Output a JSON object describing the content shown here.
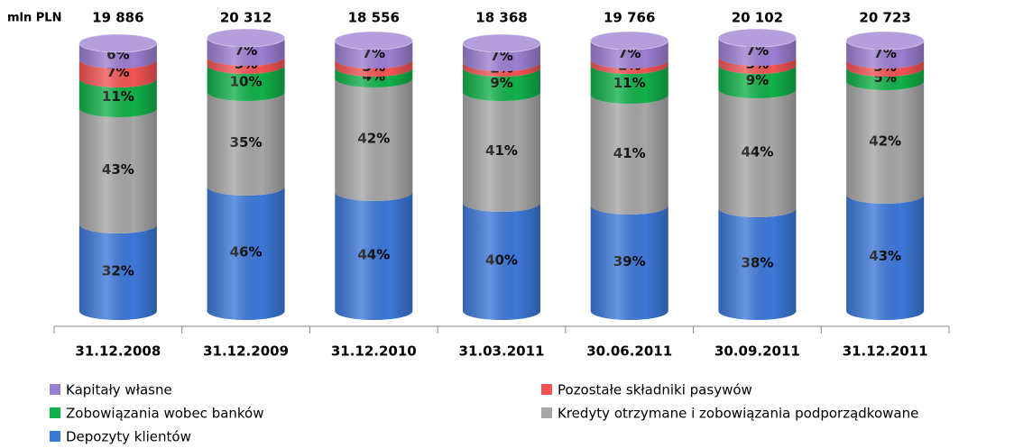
{
  "chart_data": {
    "type": "stacked_cylinder",
    "unit_label": "mln PLN",
    "categories": [
      "31.12.2008",
      "31.12.2009",
      "31.12.2010",
      "31.03.2011",
      "30.06.2011",
      "30.09.2011",
      "31.12.2011"
    ],
    "totals": {
      "values": [
        19886,
        20312,
        18556,
        18368,
        19766,
        20102,
        20723
      ],
      "value_labels": [
        "19 886",
        "20 312",
        "18 556",
        "18 368",
        "19 766",
        "20 102",
        "20 723"
      ]
    },
    "series": [
      {
        "name": "Depozyty klientów",
        "color": "#3d78d8",
        "values": [
          32,
          46,
          44,
          40,
          39,
          38,
          43
        ],
        "value_labels": [
          "32%",
          "46%",
          "44%",
          "40%",
          "39%",
          "38%",
          "43%"
        ]
      },
      {
        "name": "Kredyty otrzymane i zobowiązania podporządkowane",
        "color": "#a6a6a6",
        "values": [
          43,
          35,
          42,
          41,
          41,
          44,
          42
        ],
        "value_labels": [
          "43%",
          "35%",
          "42%",
          "41%",
          "41%",
          "44%",
          "42%"
        ]
      },
      {
        "name": "Zobowiązania wobec banków",
        "color": "#12b04a",
        "values": [
          11,
          10,
          4,
          9,
          11,
          9,
          5
        ],
        "value_labels": [
          "11%",
          "10%",
          "4%",
          "9%",
          "11%",
          "9%",
          "5%"
        ]
      },
      {
        "name": "Pozostałe składniki pasywów",
        "color": "#f25454",
        "values": [
          7,
          3,
          3,
          2,
          2,
          3,
          3
        ],
        "value_labels": [
          "7%",
          "3%",
          "3%",
          "2%",
          "2%",
          "3%",
          "3%"
        ]
      },
      {
        "name": "Kapitały własne",
        "color": "#9b7fd1",
        "values": [
          6,
          7,
          7,
          7,
          7,
          7,
          7
        ],
        "value_labels": [
          "6%",
          "7%",
          "7%",
          "7%",
          "7%",
          "7%",
          "7%"
        ]
      }
    ]
  }
}
